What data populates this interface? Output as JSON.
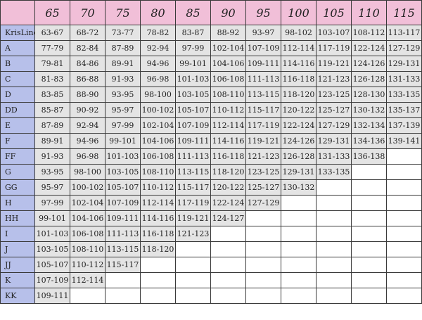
{
  "colors": {
    "header_bg": "#f1bfd8",
    "rowhead_bg": "#b7c0ea",
    "cell_bg": "#e4e4e4",
    "empty_bg": "#ffffff",
    "border": "#3a3a3a"
  },
  "header": {
    "corner": "",
    "columns": [
      "65",
      "70",
      "75",
      "80",
      "85",
      "90",
      "95",
      "100",
      "105",
      "110",
      "115"
    ]
  },
  "rows": [
    {
      "label": "KrisLine",
      "values": [
        "63-67",
        "68-72",
        "73-77",
        "78-82",
        "83-87",
        "88-92",
        "93-97",
        "98-102",
        "103-107",
        "108-112",
        "113-117"
      ]
    },
    {
      "label": "A",
      "values": [
        "77-79",
        "82-84",
        "87-89",
        "92-94",
        "97-99",
        "102-104",
        "107-109",
        "112-114",
        "117-119",
        "122-124",
        "127-129"
      ]
    },
    {
      "label": "B",
      "values": [
        "79-81",
        "84-86",
        "89-91",
        "94-96",
        "99-101",
        "104-106",
        "109-111",
        "114-116",
        "119-121",
        "124-126",
        "129-131"
      ]
    },
    {
      "label": "C",
      "values": [
        "81-83",
        "86-88",
        "91-93",
        "96-98",
        "101-103",
        "106-108",
        "111-113",
        "116-118",
        "121-123",
        "126-128",
        "131-133"
      ]
    },
    {
      "label": "D",
      "values": [
        "83-85",
        "88-90",
        "93-95",
        "98-100",
        "103-105",
        "108-110",
        "113-115",
        "118-120",
        "123-125",
        "128-130",
        "133-135"
      ]
    },
    {
      "label": "DD",
      "values": [
        "85-87",
        "90-92",
        "95-97",
        "100-102",
        "105-107",
        "110-112",
        "115-117",
        "120-122",
        "125-127",
        "130-132",
        "135-137"
      ]
    },
    {
      "label": "E",
      "values": [
        "87-89",
        "92-94",
        "97-99",
        "102-104",
        "107-109",
        "112-114",
        "117-119",
        "122-124",
        "127-129",
        "132-134",
        "137-139"
      ]
    },
    {
      "label": "F",
      "values": [
        "89-91",
        "94-96",
        "99-101",
        "104-106",
        "109-111",
        "114-116",
        "119-121",
        "124-126",
        "129-131",
        "134-136",
        "139-141"
      ]
    },
    {
      "label": "FF",
      "values": [
        "91-93",
        "96-98",
        "101-103",
        "106-108",
        "111-113",
        "116-118",
        "121-123",
        "126-128",
        "131-133",
        "136-138",
        ""
      ]
    },
    {
      "label": "G",
      "values": [
        "93-95",
        "98-100",
        "103-105",
        "108-110",
        "113-115",
        "118-120",
        "123-125",
        "129-131",
        "133-135",
        "",
        ""
      ]
    },
    {
      "label": "GG",
      "values": [
        "95-97",
        "100-102",
        "105-107",
        "110-112",
        "115-117",
        "120-122",
        "125-127",
        "130-132",
        "",
        "",
        ""
      ]
    },
    {
      "label": "H",
      "values": [
        "97-99",
        "102-104",
        "107-109",
        "112-114",
        "117-119",
        "122-124",
        "127-129",
        "",
        "",
        "",
        ""
      ]
    },
    {
      "label": "HH",
      "values": [
        "99-101",
        "104-106",
        "109-111",
        "114-116",
        "119-121",
        "124-127",
        "",
        "",
        "",
        "",
        ""
      ]
    },
    {
      "label": "I",
      "values": [
        "101-103",
        "106-108",
        "111-113",
        "116-118",
        "121-123",
        "",
        "",
        "",
        "",
        "",
        ""
      ]
    },
    {
      "label": "J",
      "values": [
        "103-105",
        "108-110",
        "113-115",
        "118-120",
        "",
        "",
        "",
        "",
        "",
        "",
        ""
      ]
    },
    {
      "label": "JJ",
      "values": [
        "105-107",
        "110-112",
        "115-117",
        "",
        "",
        "",
        "",
        "",
        "",
        "",
        ""
      ]
    },
    {
      "label": "K",
      "values": [
        "107-109",
        "112-114",
        "",
        "",
        "",
        "",
        "",
        "",
        "",
        "",
        ""
      ]
    },
    {
      "label": "KK",
      "values": [
        "109-111",
        "",
        "",
        "",
        "",
        "",
        "",
        "",
        "",
        "",
        ""
      ]
    }
  ]
}
